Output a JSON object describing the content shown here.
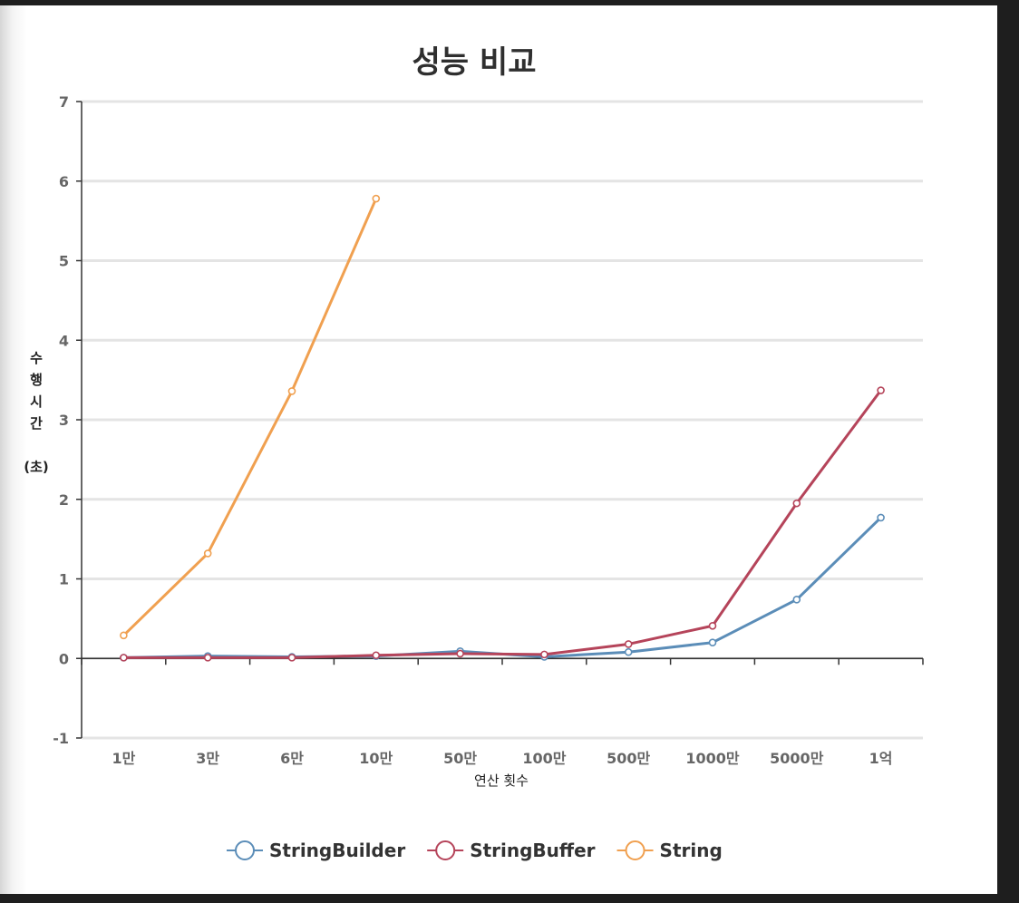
{
  "chart_data": {
    "type": "line",
    "title": "성능 비교",
    "xlabel": "연산 횟수",
    "ylabel_lines": [
      "수",
      "행",
      "시",
      "간",
      "",
      "(초)"
    ],
    "categories": [
      "1만",
      "3만",
      "6만",
      "10만",
      "50만",
      "100만",
      "500만",
      "1000만",
      "5000만",
      "1억"
    ],
    "ylim": [
      -1,
      7
    ],
    "yticks": [
      -1,
      0,
      1,
      2,
      3,
      4,
      5,
      6,
      7
    ],
    "grid": true,
    "legend_position": "bottom",
    "series": [
      {
        "name": "StringBuilder",
        "color": "#5b8db8",
        "values": [
          0.01,
          0.03,
          0.02,
          0.03,
          0.09,
          0.02,
          0.08,
          0.2,
          0.74,
          1.77
        ]
      },
      {
        "name": "StringBuffer",
        "color": "#b5445a",
        "values": [
          0.01,
          0.01,
          0.01,
          0.04,
          0.06,
          0.05,
          0.18,
          0.41,
          1.95,
          3.37
        ]
      },
      {
        "name": "String",
        "color": "#f0a050",
        "values": [
          0.29,
          1.32,
          3.36,
          5.78,
          null,
          null,
          null,
          null,
          null,
          null
        ]
      }
    ]
  }
}
